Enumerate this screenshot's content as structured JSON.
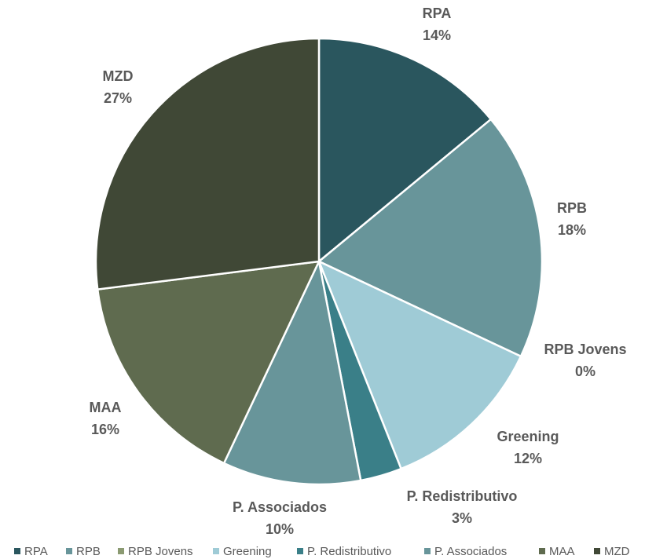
{
  "chart_data": {
    "type": "pie",
    "categories": [
      "RPA",
      "RPB",
      "RPB Jovens",
      "Greening",
      "P. Redistributivo",
      "P. Associados",
      "MAA",
      "MZD"
    ],
    "values": [
      14,
      18,
      0,
      12,
      3,
      10,
      16,
      27
    ],
    "value_labels": [
      "14%",
      "18%",
      "0%",
      "12%",
      "3%",
      "10%",
      "16%",
      "27%"
    ],
    "colors": [
      "#2a565e",
      "#68959a",
      "#8b9a72",
      "#9fcbd6",
      "#3a7f88",
      "#68959a",
      "#5f6b4f",
      "#404836"
    ],
    "legend": "bottom"
  }
}
